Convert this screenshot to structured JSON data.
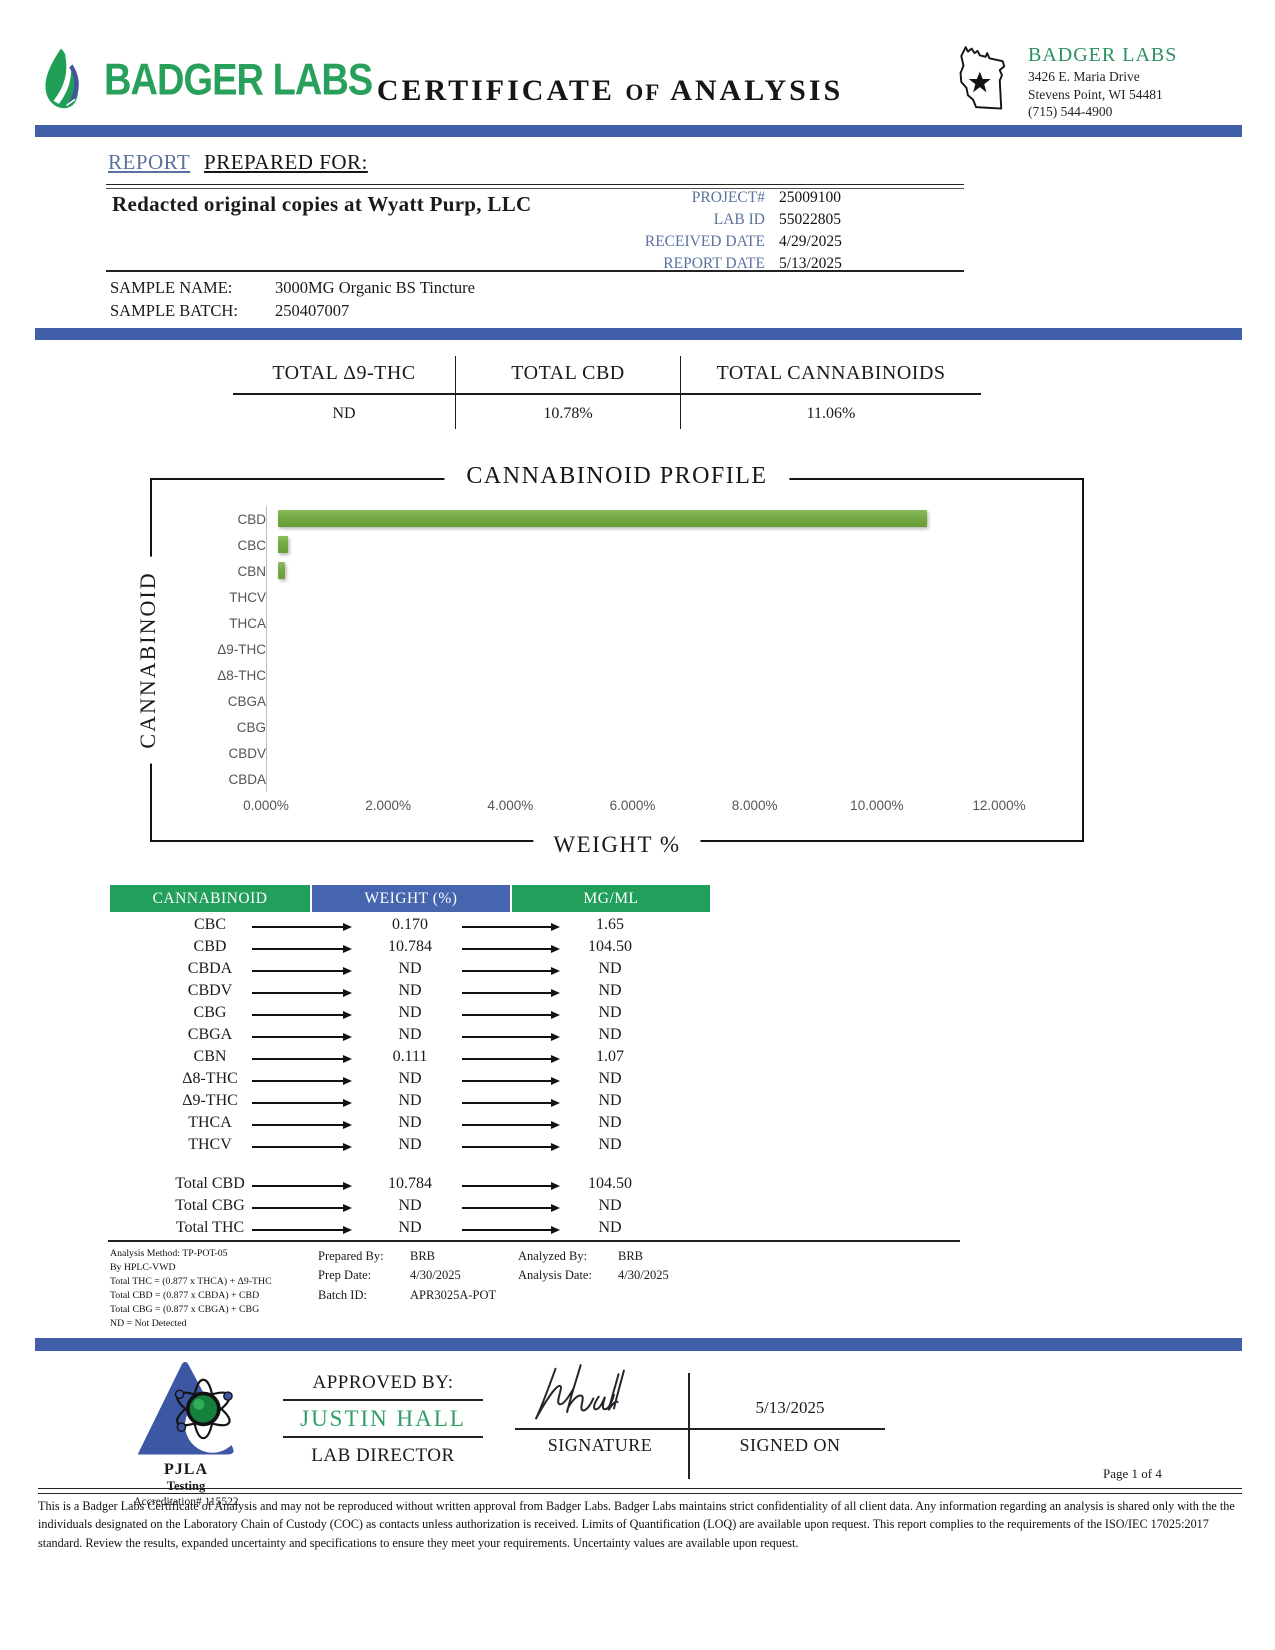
{
  "header": {
    "logo_text": "BADGER LABS",
    "title_part1": "CERTIFICATE",
    "title_part2": "of",
    "title_part3": "ANALYSIS",
    "lab_name": "BADGER LABS",
    "address_line1": "3426 E. Maria Drive",
    "address_line2": "Stevens Point, WI 54481",
    "phone": "(715) 544-4900"
  },
  "report": {
    "section_title_accent": "REPORT",
    "section_title_rest": "PREPARED FOR:",
    "client": "Redacted original copies at Wyatt Purp, LLC",
    "meta": [
      {
        "label": "PROJECT#",
        "value": "25009100"
      },
      {
        "label": "LAB ID",
        "value": "55022805"
      },
      {
        "label": "RECEIVED DATE",
        "value": "4/29/2025"
      },
      {
        "label": "REPORT DATE",
        "value": "5/13/2025"
      }
    ],
    "sample_name_label": "SAMPLE NAME:",
    "sample_name": "3000MG Organic BS Tincture",
    "sample_batch_label": "SAMPLE BATCH:",
    "sample_batch": "250407007"
  },
  "totals": [
    {
      "label": "TOTAL Δ9-THC",
      "value": "ND"
    },
    {
      "label": "TOTAL CBD",
      "value": "10.78%"
    },
    {
      "label": "TOTAL CANNABINOIDS",
      "value": "11.06%"
    }
  ],
  "chart_data": {
    "type": "bar",
    "orientation": "horizontal",
    "title": "CANNABINOID PROFILE",
    "xlabel": "WEIGHT %",
    "ylabel": "CANNABINOID",
    "categories": [
      "CBD",
      "CBC",
      "CBN",
      "THCV",
      "THCA",
      "Δ9-THC",
      "Δ8-THC",
      "CBGA",
      "CBG",
      "CBDV",
      "CBDA"
    ],
    "values": [
      10.784,
      0.17,
      0.111,
      0,
      0,
      0,
      0,
      0,
      0,
      0,
      0
    ],
    "xlim": [
      0,
      12
    ],
    "x_ticks": [
      "0.000%",
      "2.000%",
      "4.000%",
      "6.000%",
      "8.000%",
      "10.000%",
      "12.000%"
    ],
    "grid": false,
    "bar_color": "#76ab44"
  },
  "table": {
    "headers": [
      "CANNABINOID",
      "WEIGHT (%)",
      "MG/ML"
    ],
    "header_colors": [
      "#22a05b",
      "#4565ae",
      "#22a05b"
    ],
    "rows": [
      [
        "CBC",
        "0.170",
        "1.65"
      ],
      [
        "CBD",
        "10.784",
        "104.50"
      ],
      [
        "CBDA",
        "ND",
        "ND"
      ],
      [
        "CBDV",
        "ND",
        "ND"
      ],
      [
        "CBG",
        "ND",
        "ND"
      ],
      [
        "CBGA",
        "ND",
        "ND"
      ],
      [
        "CBN",
        "0.111",
        "1.07"
      ],
      [
        "Δ8-THC",
        "ND",
        "ND"
      ],
      [
        "Δ9-THC",
        "ND",
        "ND"
      ],
      [
        "THCA",
        "ND",
        "ND"
      ],
      [
        "THCV",
        "ND",
        "ND"
      ]
    ],
    "total_rows": [
      [
        "Total CBD",
        "10.784",
        "104.50"
      ],
      [
        "Total CBG",
        "ND",
        "ND"
      ],
      [
        "Total THC",
        "ND",
        "ND"
      ]
    ]
  },
  "method": {
    "lines": [
      "Analysis Method: TP-POT-05",
      "By HPLC-VWD",
      "Total THC = (0.877 x  THCA) + Δ9-THC",
      "Total CBD = (0.877 x  CBDA) + CBD",
      "Total CBG = (0.877 x  CBGA) + CBG",
      "ND = Not Detected"
    ],
    "prepared_by_label": "Prepared By:",
    "prepared_by": "BRB",
    "prep_date_label": "Prep Date:",
    "prep_date": "4/30/2025",
    "batch_id_label": "Batch ID:",
    "batch_id": "APR3025A-POT",
    "analyzed_by_label": "Analyzed By:",
    "analyzed_by": "BRB",
    "analysis_date_label": "Analysis Date:",
    "analysis_date": "4/30/2025"
  },
  "approval": {
    "pjla_name": "PJLA",
    "pjla_testing": "Testing",
    "accreditation": "Accreditation# 115522",
    "approved_by_label": "APPROVED BY:",
    "approver": "JUSTIN HALL",
    "approver_title": "LAB DIRECTOR",
    "signature_label": "SIGNATURE",
    "signed_on_label": "SIGNED ON",
    "signed_date": "5/13/2025"
  },
  "footer": {
    "page": "Page 1 of 4",
    "disclaimer": "This is a Badger Labs Certificate of Analysis and may not be reproduced without written approval from Badger Labs. Badger Labs maintains strict confidentiality of all client data. Any information regarding an analysis is shared only with the the individuals designated on the Laboratory Chain of Custody (COC) as contacts unless authorization is received. Limits of Quantification (LOQ) are available upon request. This report complies to the requirements of the ISO/IEC 17025:2017 standard. Review the results, expanded uncertainty and specifications to ensure they meet your requirements. Uncertainty values are available upon request."
  },
  "colors": {
    "accent_bar_blue": "#415fa9",
    "brand_green": "#27a05c",
    "meta_label_blue": "#5b729e",
    "bar_green": "#76ab44",
    "table_green": "#22a05b",
    "table_blue": "#4565ae",
    "approver_green": "#2e9e63"
  }
}
